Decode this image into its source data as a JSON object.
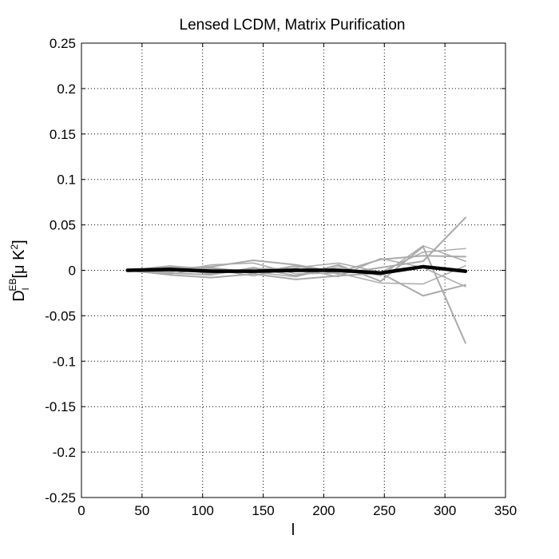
{
  "chart_data": {
    "type": "line",
    "title": "Lensed LCDM, Matrix Purification",
    "xlabel": "l",
    "ylabel": {
      "main": "D",
      "sub": "l",
      "sup": "EB",
      "unit_open": "[",
      "unit_mu": "μ K",
      "unit_sup": "2",
      "unit_close": "]"
    },
    "xlim": [
      0,
      350
    ],
    "ylim": [
      -0.25,
      0.25
    ],
    "x_ticks": [
      0,
      50,
      100,
      150,
      200,
      250,
      300,
      350
    ],
    "x_tick_labels": [
      "0",
      "50",
      "100",
      "150",
      "200",
      "250",
      "300",
      "350"
    ],
    "y_ticks": [
      0.25,
      0.2,
      0.15,
      0.1,
      0.05,
      0,
      -0.05,
      -0.1,
      -0.15,
      -0.2,
      -0.25
    ],
    "y_tick_labels": [
      "0.25",
      "0.2",
      "0.15",
      "0.1",
      "0.05",
      "0",
      "-0.05",
      "-0.1",
      "-0.15",
      "-0.2",
      "-0.25"
    ],
    "grid": true,
    "x": [
      38,
      73,
      107,
      142,
      177,
      212,
      247,
      282,
      317
    ],
    "series": [
      {
        "values": [
          0,
          0.004,
          0.002,
          -0.003,
          0.005,
          -0.004,
          0.003,
          0.01,
          0.058
        ],
        "color": "#aaaaaa",
        "width": 2
      },
      {
        "values": [
          0,
          -0.003,
          -0.005,
          0.003,
          -0.006,
          0.006,
          -0.012,
          0.026,
          -0.08
        ],
        "color": "#aaaaaa",
        "width": 2
      },
      {
        "values": [
          0,
          0.002,
          0.004,
          0.011,
          0.006,
          -0.002,
          0.012,
          0.016,
          0.015
        ],
        "color": "#aaaaaa",
        "width": 2
      },
      {
        "values": [
          0,
          -0.005,
          -0.008,
          -0.004,
          -0.01,
          -0.006,
          -0.003,
          -0.028,
          -0.016
        ],
        "color": "#aaaaaa",
        "width": 2
      },
      {
        "values": [
          0,
          0.005,
          0.001,
          -0.006,
          0.003,
          0.008,
          -0.002,
          0.02,
          0.024
        ],
        "color": "#aaaaaa",
        "width": 1.5
      },
      {
        "values": [
          0,
          -0.002,
          0.006,
          0.008,
          -0.004,
          -0.003,
          -0.014,
          -0.015,
          0.005
        ],
        "color": "#aaaaaa",
        "width": 1.5
      },
      {
        "values": [
          0,
          0.003,
          -0.004,
          0.002,
          0.002,
          -0.007,
          0.013,
          0.003,
          -0.018
        ],
        "color": "#aaaaaa",
        "width": 1.5
      },
      {
        "values": [
          0,
          -0.004,
          0.003,
          -0.002,
          -0.007,
          0.004,
          -0.006,
          0.027,
          0.01
        ],
        "color": "#aaaaaa",
        "width": 1.5
      },
      {
        "values": [
          0,
          0.001,
          -0.001,
          -0.001,
          0,
          0,
          -0.003,
          0.004,
          -0.001
        ],
        "color": "#000000",
        "width": 4.5
      }
    ]
  }
}
